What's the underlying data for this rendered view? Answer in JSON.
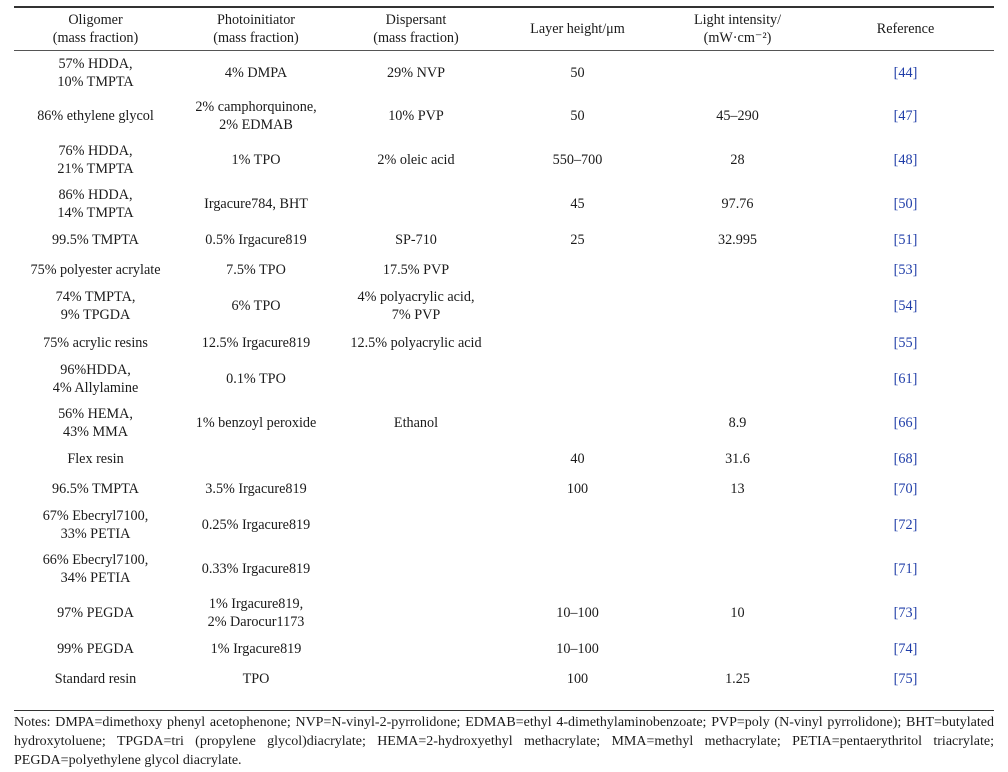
{
  "headers": {
    "oligomer": [
      "Oligomer",
      "(mass fraction)"
    ],
    "photoinitiator": [
      "Photoinitiator",
      "(mass fraction)"
    ],
    "dispersant": [
      "Dispersant",
      "(mass fraction)"
    ],
    "layer_height": "Layer height/μm",
    "light_intensity": [
      "Light intensity/",
      "(mW·cm⁻²)"
    ],
    "reference": "Reference"
  },
  "rows": [
    {
      "oligomer": [
        "57% HDDA,",
        "10% TMPTA"
      ],
      "photoinitiator": [
        "4% DMPA"
      ],
      "dispersant": [
        "29% NVP"
      ],
      "layer_height": "50",
      "light_intensity": "",
      "reference": "[44]"
    },
    {
      "oligomer": [
        "86% ethylene glycol"
      ],
      "photoinitiator": [
        "2% camphorquinone,",
        "2% EDMAB"
      ],
      "dispersant": [
        "10% PVP"
      ],
      "layer_height": "50",
      "light_intensity": "45–290",
      "reference": "[47]"
    },
    {
      "oligomer": [
        "76% HDDA,",
        "21% TMPTA"
      ],
      "photoinitiator": [
        "1% TPO"
      ],
      "dispersant": [
        "2% oleic acid"
      ],
      "layer_height": "550–700",
      "light_intensity": "28",
      "reference": "[48]"
    },
    {
      "oligomer": [
        "86% HDDA,",
        "14% TMPTA"
      ],
      "photoinitiator": [
        "Irgacure784, BHT"
      ],
      "dispersant": [],
      "layer_height": "45",
      "light_intensity": "97.76",
      "reference": "[50]"
    },
    {
      "oligomer": [
        "99.5% TMPTA"
      ],
      "photoinitiator": [
        "0.5% Irgacure819"
      ],
      "dispersant": [
        "SP-710"
      ],
      "layer_height": "25",
      "light_intensity": "32.995",
      "reference": "[51]"
    },
    {
      "oligomer": [
        "75% polyester acrylate"
      ],
      "photoinitiator": [
        "7.5% TPO"
      ],
      "dispersant": [
        "17.5% PVP"
      ],
      "layer_height": "",
      "light_intensity": "",
      "reference": "[53]"
    },
    {
      "oligomer": [
        "74% TMPTA,",
        "9% TPGDA"
      ],
      "photoinitiator": [
        "6% TPO"
      ],
      "dispersant": [
        "4% polyacrylic acid,",
        "7% PVP"
      ],
      "layer_height": "",
      "light_intensity": "",
      "reference": "[54]"
    },
    {
      "oligomer": [
        "75% acrylic resins"
      ],
      "photoinitiator": [
        "12.5% Irgacure819"
      ],
      "dispersant": [
        "12.5% polyacrylic acid"
      ],
      "layer_height": "",
      "light_intensity": "",
      "reference": "[55]"
    },
    {
      "oligomer": [
        "96%HDDA,",
        "4% Allylamine"
      ],
      "photoinitiator": [
        "0.1% TPO"
      ],
      "dispersant": [],
      "layer_height": "",
      "light_intensity": "",
      "reference": "[61]"
    },
    {
      "oligomer": [
        "56% HEMA,",
        "43% MMA"
      ],
      "photoinitiator": [
        "1% benzoyl peroxide"
      ],
      "dispersant": [
        "Ethanol"
      ],
      "layer_height": "",
      "light_intensity": "8.9",
      "reference": "[66]"
    },
    {
      "oligomer": [
        "Flex resin"
      ],
      "photoinitiator": [],
      "dispersant": [],
      "layer_height": "40",
      "light_intensity": "31.6",
      "reference": "[68]"
    },
    {
      "oligomer": [
        "96.5% TMPTA"
      ],
      "photoinitiator": [
        "3.5% Irgacure819"
      ],
      "dispersant": [],
      "layer_height": "100",
      "light_intensity": "13",
      "reference": "[70]"
    },
    {
      "oligomer": [
        "67% Ebecryl7100,",
        "33% PETIA"
      ],
      "photoinitiator": [
        "0.25% Irgacure819"
      ],
      "dispersant": [],
      "layer_height": "",
      "light_intensity": "",
      "reference": "[72]"
    },
    {
      "oligomer": [
        "66% Ebecryl7100,",
        "34% PETIA"
      ],
      "photoinitiator": [
        "0.33% Irgacure819"
      ],
      "dispersant": [],
      "layer_height": "",
      "light_intensity": "",
      "reference": "[71]"
    },
    {
      "oligomer": [
        "97% PEGDA"
      ],
      "photoinitiator": [
        "1% Irgacure819,",
        "2% Darocur1173"
      ],
      "dispersant": [],
      "layer_height": "10–100",
      "light_intensity": "10",
      "reference": "[73]"
    },
    {
      "oligomer": [
        "99% PEGDA"
      ],
      "photoinitiator": [
        "1% Irgacure819"
      ],
      "dispersant": [],
      "layer_height": "10–100",
      "light_intensity": "",
      "reference": "[74]"
    },
    {
      "oligomer": [
        "Standard resin"
      ],
      "photoinitiator": [
        "TPO"
      ],
      "dispersant": [],
      "layer_height": "100",
      "light_intensity": "1.25",
      "reference": "[75]"
    }
  ],
  "notes": "Notes: DMPA=dimethoxy phenyl acetophenone; NVP=N-vinyl-2-pyrrolidone; EDMAB=ethyl 4-dimethylaminobenzoate; PVP=poly (N-vinyl pyrrolidone); BHT=butylated hydroxytoluene; TPGDA=tri (propylene glycol)diacrylate; HEMA=2-hydroxyethyl methacrylate; MMA=methyl methacrylate; PETIA=pentaerythritol triacrylate; PEGDA=polyethylene glycol diacrylate.",
  "colors": {
    "text": "#1a1a1a",
    "reference_link": "#1f3da8",
    "rule": "#333333"
  }
}
